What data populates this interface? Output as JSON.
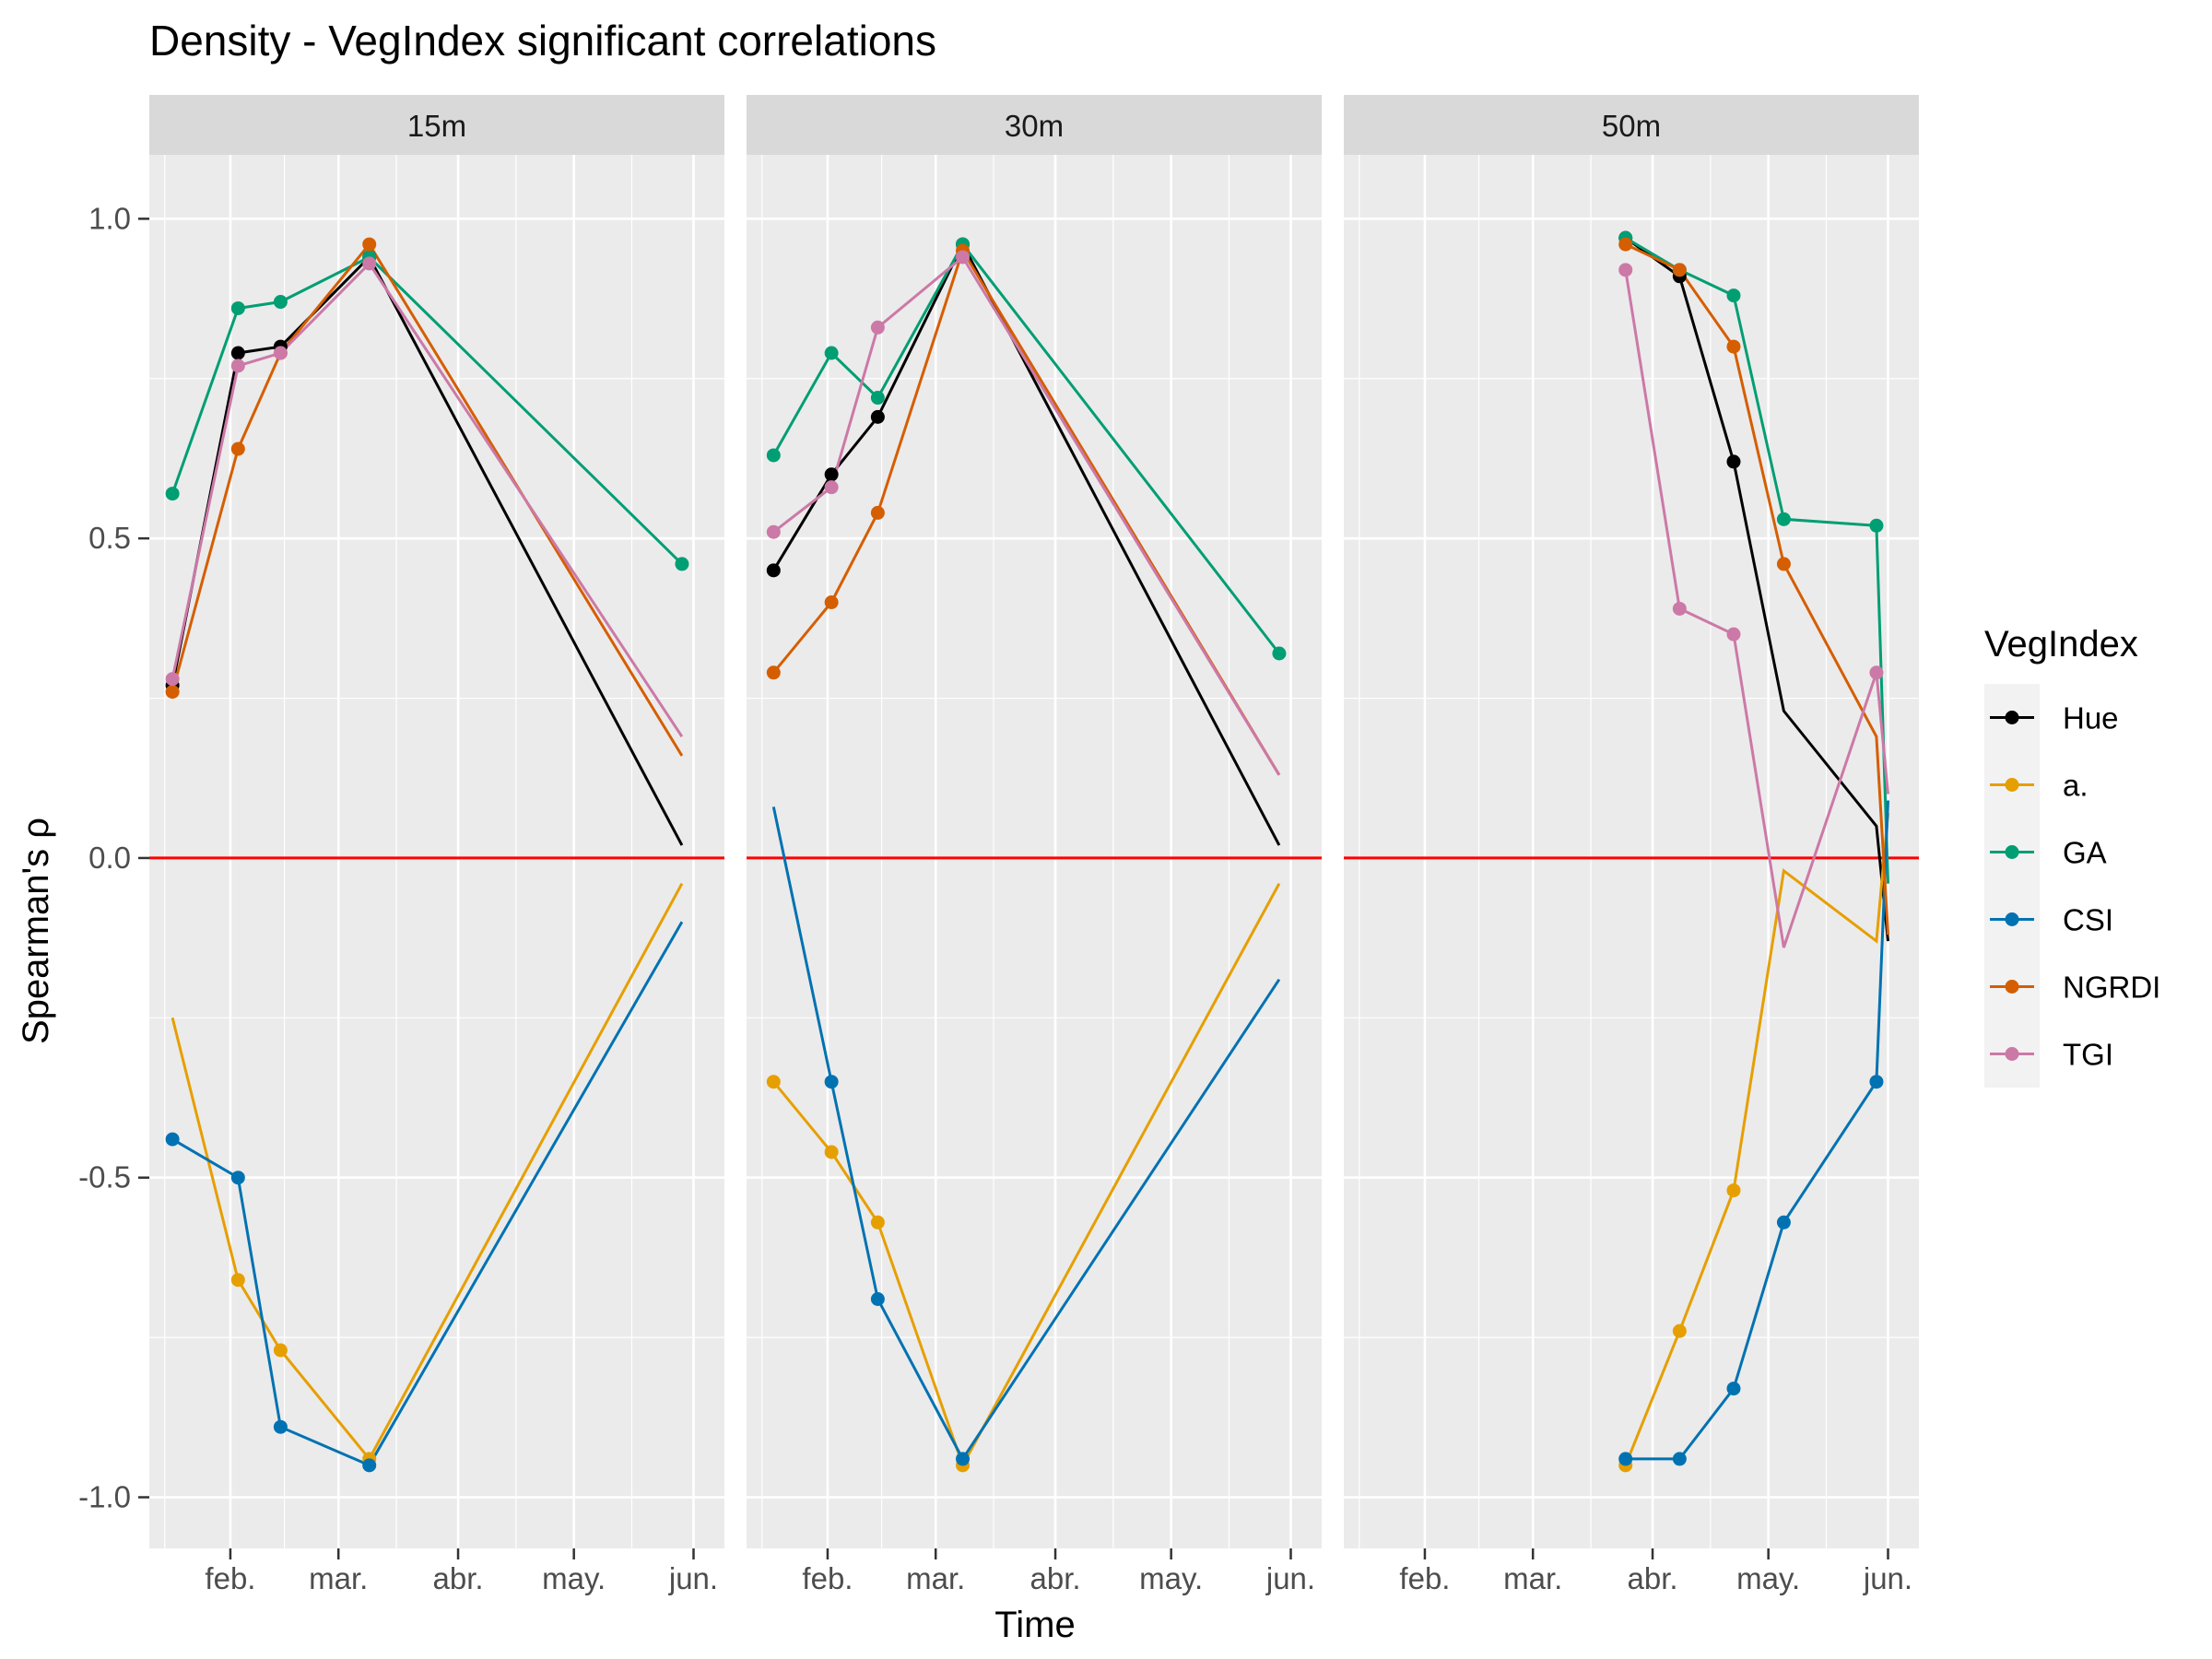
{
  "chart_data": {
    "type": "line",
    "title": "Density - VegIndex significant correlations",
    "xlabel": "Time",
    "ylabel": "Spearman's ρ",
    "ylim": [
      -1.08,
      1.1
    ],
    "y_ticks": [
      -1.0,
      -0.5,
      0.0,
      0.5,
      1.0
    ],
    "y_tick_labels": [
      "-1.0",
      "-0.5",
      "0.0",
      "0.5",
      "1.0"
    ],
    "x_domain": [
      "2019-01-11",
      "2019-06-09"
    ],
    "x_ticks": [
      "2019-02-01",
      "2019-03-01",
      "2019-04-01",
      "2019-05-01",
      "2019-06-01"
    ],
    "x_tick_labels": [
      "feb.",
      "mar.",
      "abr.",
      "may.",
      "jun."
    ],
    "reference_line": {
      "y": 0,
      "color": "#FF0000"
    },
    "grid": true,
    "legend": {
      "title": "VegIndex",
      "position": "right",
      "entries": [
        {
          "name": "Hue",
          "color": "#000000"
        },
        {
          "name": "a.",
          "color": "#E69F00"
        },
        {
          "name": "GA",
          "color": "#009E73"
        },
        {
          "name": "CSI",
          "color": "#0072B2"
        },
        {
          "name": "NGRDI",
          "color": "#D55E00"
        },
        {
          "name": "TGI",
          "color": "#CC79A7"
        }
      ]
    },
    "panels": [
      {
        "label": "15m",
        "series": [
          {
            "name": "Hue",
            "x": [
              "2019-01-17",
              "2019-02-03",
              "2019-02-14",
              "2019-03-09",
              "2019-05-29"
            ],
            "y": [
              0.27,
              0.79,
              0.8,
              0.94,
              0.02
            ],
            "markers": [
              true,
              true,
              true,
              true,
              false
            ]
          },
          {
            "name": "a.",
            "x": [
              "2019-01-17",
              "2019-02-03",
              "2019-02-14",
              "2019-03-09",
              "2019-05-29"
            ],
            "y": [
              -0.25,
              -0.66,
              -0.77,
              -0.94,
              -0.04
            ],
            "markers": [
              false,
              true,
              true,
              true,
              false
            ]
          },
          {
            "name": "GA",
            "x": [
              "2019-01-17",
              "2019-02-03",
              "2019-02-14",
              "2019-03-09",
              "2019-05-29"
            ],
            "y": [
              0.57,
              0.86,
              0.87,
              0.94,
              0.46
            ],
            "markers": [
              true,
              true,
              true,
              true,
              true
            ]
          },
          {
            "name": "CSI",
            "x": [
              "2019-01-17",
              "2019-02-03",
              "2019-02-14",
              "2019-03-09",
              "2019-05-29"
            ],
            "y": [
              -0.44,
              -0.5,
              -0.89,
              -0.95,
              -0.1
            ],
            "markers": [
              true,
              true,
              true,
              true,
              false
            ]
          },
          {
            "name": "NGRDI",
            "x": [
              "2019-01-17",
              "2019-02-03",
              "2019-02-14",
              "2019-03-09",
              "2019-05-29"
            ],
            "y": [
              0.26,
              0.64,
              0.79,
              0.96,
              0.16
            ],
            "markers": [
              true,
              true,
              true,
              true,
              false
            ]
          },
          {
            "name": "TGI",
            "x": [
              "2019-01-17",
              "2019-02-03",
              "2019-02-14",
              "2019-03-09",
              "2019-05-29"
            ],
            "y": [
              0.28,
              0.77,
              0.79,
              0.93,
              0.19
            ],
            "markers": [
              true,
              true,
              true,
              true,
              false
            ]
          }
        ]
      },
      {
        "label": "30m",
        "series": [
          {
            "name": "Hue",
            "x": [
              "2019-01-18",
              "2019-02-02",
              "2019-02-14",
              "2019-03-08",
              "2019-05-29"
            ],
            "y": [
              0.45,
              0.6,
              0.69,
              0.96,
              0.02
            ],
            "markers": [
              true,
              true,
              true,
              true,
              false
            ]
          },
          {
            "name": "a.",
            "x": [
              "2019-01-18",
              "2019-02-02",
              "2019-02-14",
              "2019-03-08",
              "2019-05-29"
            ],
            "y": [
              -0.35,
              -0.46,
              -0.57,
              -0.95,
              -0.04
            ],
            "markers": [
              true,
              true,
              true,
              true,
              false
            ]
          },
          {
            "name": "GA",
            "x": [
              "2019-01-18",
              "2019-02-02",
              "2019-02-14",
              "2019-03-08",
              "2019-05-29"
            ],
            "y": [
              0.63,
              0.79,
              0.72,
              0.96,
              0.32
            ],
            "markers": [
              true,
              true,
              true,
              true,
              true
            ]
          },
          {
            "name": "CSI",
            "x": [
              "2019-01-18",
              "2019-02-02",
              "2019-02-14",
              "2019-03-08",
              "2019-05-29"
            ],
            "y": [
              0.08,
              -0.35,
              -0.69,
              -0.94,
              -0.19
            ],
            "markers": [
              false,
              true,
              true,
              true,
              false
            ]
          },
          {
            "name": "NGRDI",
            "x": [
              "2019-01-18",
              "2019-02-02",
              "2019-02-14",
              "2019-03-08",
              "2019-05-29"
            ],
            "y": [
              0.29,
              0.4,
              0.54,
              0.95,
              0.13
            ],
            "markers": [
              true,
              true,
              true,
              true,
              false
            ]
          },
          {
            "name": "TGI",
            "x": [
              "2019-01-18",
              "2019-02-02",
              "2019-02-14",
              "2019-03-08",
              "2019-05-29"
            ],
            "y": [
              0.51,
              0.58,
              0.83,
              0.94,
              0.13
            ],
            "markers": [
              true,
              true,
              true,
              true,
              false
            ]
          }
        ]
      },
      {
        "label": "50m",
        "series": [
          {
            "name": "Hue",
            "x": [
              "2019-03-25",
              "2019-04-08",
              "2019-04-22",
              "2019-05-05",
              "2019-05-29",
              "2019-06-01"
            ],
            "y": [
              0.97,
              0.91,
              0.62,
              0.23,
              0.05,
              -0.13
            ],
            "markers": [
              true,
              true,
              true,
              false,
              false,
              false
            ]
          },
          {
            "name": "a.",
            "x": [
              "2019-03-25",
              "2019-04-08",
              "2019-04-22",
              "2019-05-05",
              "2019-05-29",
              "2019-06-01"
            ],
            "y": [
              -0.95,
              -0.74,
              -0.52,
              -0.02,
              -0.13,
              0.07
            ],
            "markers": [
              true,
              true,
              true,
              false,
              false,
              false
            ]
          },
          {
            "name": "GA",
            "x": [
              "2019-03-25",
              "2019-04-08",
              "2019-04-22",
              "2019-05-05",
              "2019-05-29",
              "2019-06-01"
            ],
            "y": [
              0.97,
              0.92,
              0.88,
              0.53,
              0.52,
              -0.04
            ],
            "markers": [
              true,
              true,
              true,
              true,
              true,
              false
            ]
          },
          {
            "name": "CSI",
            "x": [
              "2019-03-25",
              "2019-04-08",
              "2019-04-22",
              "2019-05-05",
              "2019-05-29",
              "2019-06-01"
            ],
            "y": [
              -0.94,
              -0.94,
              -0.83,
              -0.57,
              -0.35,
              0.09
            ],
            "markers": [
              true,
              true,
              true,
              true,
              true,
              false
            ]
          },
          {
            "name": "NGRDI",
            "x": [
              "2019-03-25",
              "2019-04-08",
              "2019-04-22",
              "2019-05-05",
              "2019-05-29",
              "2019-06-01"
            ],
            "y": [
              0.96,
              0.92,
              0.8,
              0.46,
              0.19,
              -0.12
            ],
            "markers": [
              true,
              true,
              true,
              true,
              false,
              false
            ]
          },
          {
            "name": "TGI",
            "x": [
              "2019-03-25",
              "2019-04-08",
              "2019-04-22",
              "2019-05-05",
              "2019-05-29",
              "2019-06-01"
            ],
            "y": [
              0.92,
              0.39,
              0.35,
              -0.14,
              0.29,
              0.1
            ],
            "markers": [
              true,
              true,
              true,
              false,
              true,
              false
            ]
          }
        ]
      }
    ]
  }
}
